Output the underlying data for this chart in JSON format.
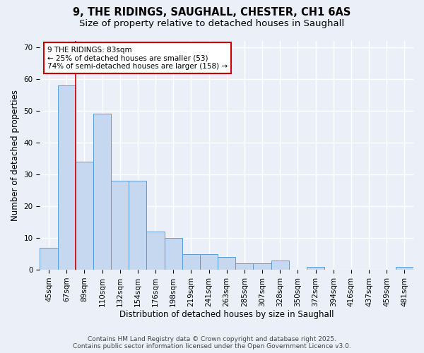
{
  "title_line1": "9, THE RIDINGS, SAUGHALL, CHESTER, CH1 6AS",
  "title_line2": "Size of property relative to detached houses in Saughall",
  "xlabel": "Distribution of detached houses by size in Saughall",
  "ylabel": "Number of detached properties",
  "bar_values": [
    7,
    58,
    34,
    49,
    28,
    28,
    12,
    10,
    5,
    5,
    4,
    2,
    2,
    3,
    0,
    1,
    0,
    0,
    0,
    0,
    1
  ],
  "bar_labels": [
    "45sqm",
    "67sqm",
    "89sqm",
    "110sqm",
    "132sqm",
    "154sqm",
    "176sqm",
    "198sqm",
    "219sqm",
    "241sqm",
    "263sqm",
    "285sqm",
    "307sqm",
    "328sqm",
    "350sqm",
    "372sqm",
    "394sqm",
    "416sqm",
    "437sqm",
    "459sqm",
    "481sqm"
  ],
  "bar_color": "#c5d8f0",
  "bar_edge_color": "#5b9bd5",
  "background_color": "#eaeff8",
  "grid_color": "#ffffff",
  "ylim": [
    0,
    72
  ],
  "yticks": [
    0,
    10,
    20,
    30,
    40,
    50,
    60,
    70
  ],
  "redline_x": 1.5,
  "annotation_text": "9 THE RIDINGS: 83sqm\n← 25% of detached houses are smaller (53)\n74% of semi-detached houses are larger (158) →",
  "annotation_box_color": "#ffffff",
  "annotation_box_edge": "#cc0000",
  "redline_color": "#cc0000",
  "footer_line1": "Contains HM Land Registry data © Crown copyright and database right 2025.",
  "footer_line2": "Contains public sector information licensed under the Open Government Licence v3.0.",
  "title_fontsize": 10.5,
  "subtitle_fontsize": 9.5,
  "axis_label_fontsize": 8.5,
  "tick_fontsize": 7.5,
  "annotation_fontsize": 7.5,
  "footer_fontsize": 6.5
}
